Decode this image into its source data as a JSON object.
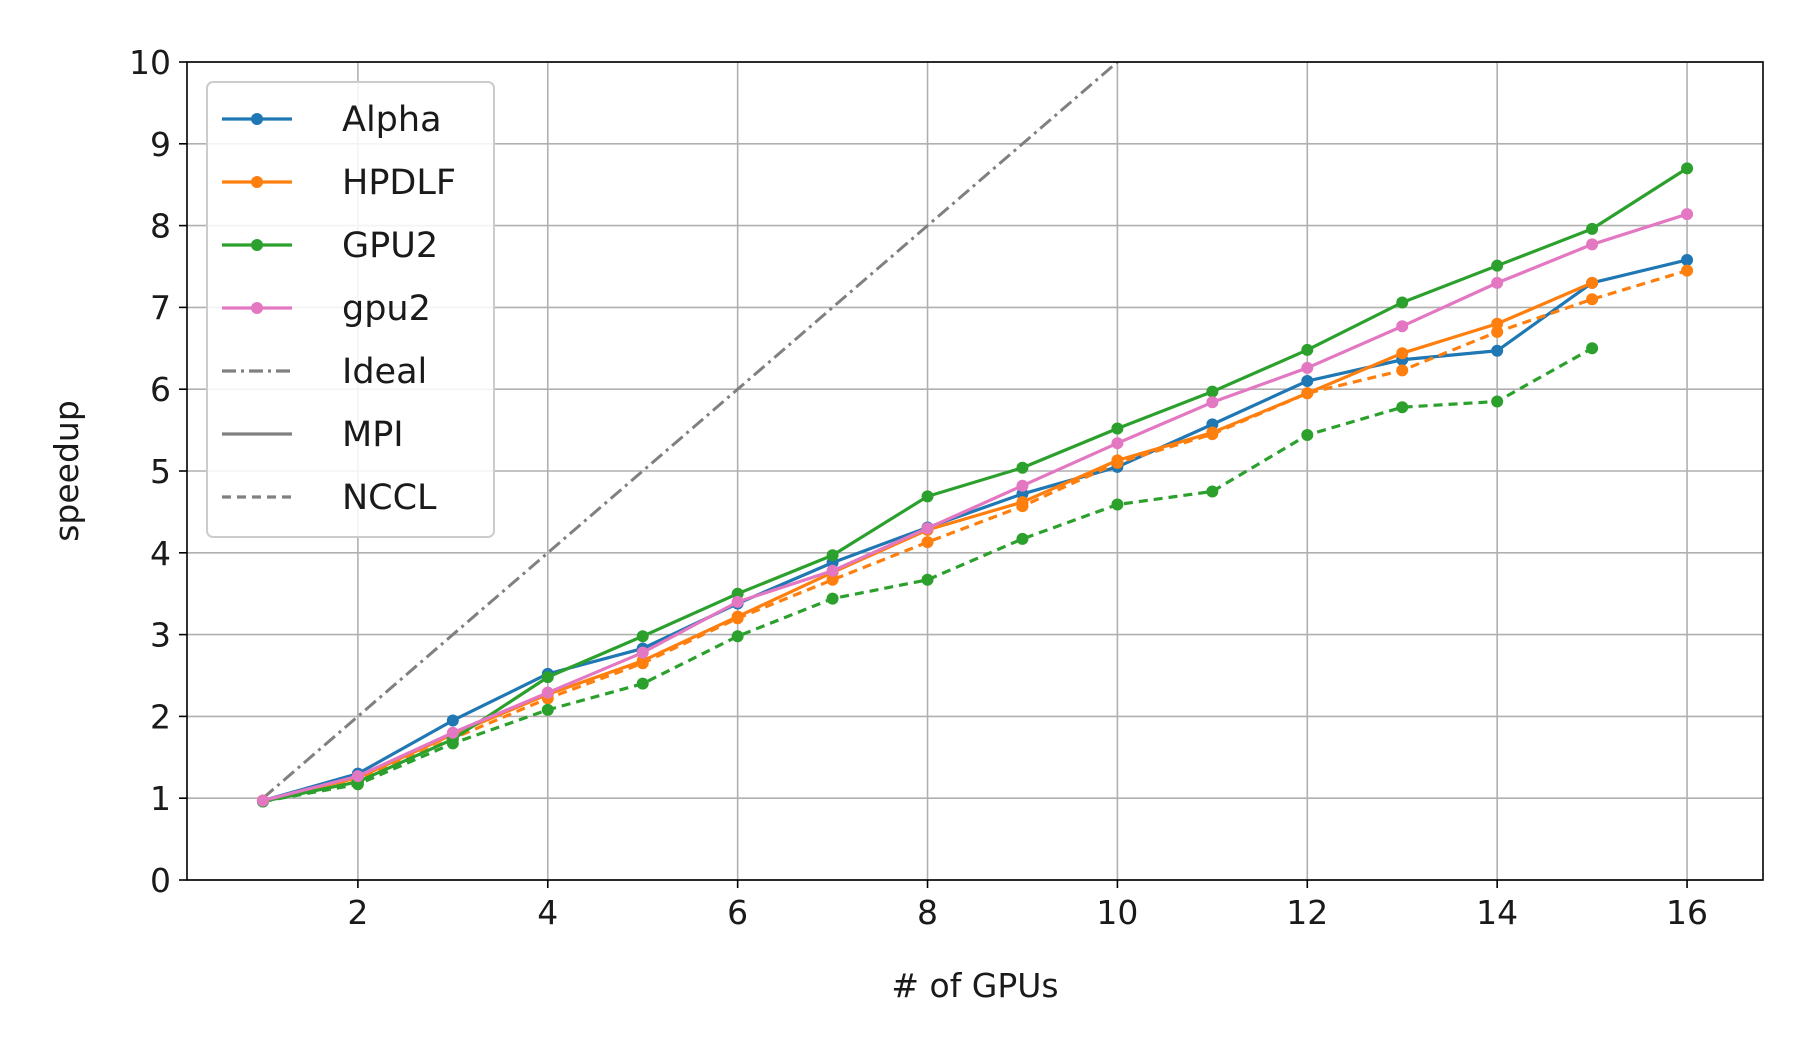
{
  "chart_data": {
    "type": "line",
    "xlabel": "# of GPUs",
    "ylabel": "speedup",
    "xlim": [
      0.2,
      16.8
    ],
    "ylim": [
      0,
      10
    ],
    "xticks": [
      2,
      4,
      6,
      8,
      10,
      12,
      14,
      16
    ],
    "yticks": [
      0,
      1,
      2,
      3,
      4,
      5,
      6,
      7,
      8,
      9,
      10
    ],
    "grid": true,
    "legend_position": "top-left",
    "legend": [
      {
        "label": "Alpha",
        "color": "#1f77b4",
        "style": "solid",
        "marker": true
      },
      {
        "label": "HPDLF",
        "color": "#ff7f0e",
        "style": "solid",
        "marker": true
      },
      {
        "label": "GPU2",
        "color": "#2ca02c",
        "style": "solid",
        "marker": true
      },
      {
        "label": "gpu2",
        "color": "#e377c2",
        "style": "solid",
        "marker": true
      },
      {
        "label": "Ideal",
        "color": "#808080",
        "style": "dashdot",
        "marker": false
      },
      {
        "label": "MPI",
        "color": "#808080",
        "style": "solid",
        "marker": false
      },
      {
        "label": "NCCL",
        "color": "#808080",
        "style": "dashed",
        "marker": false
      }
    ],
    "ideal": {
      "x": [
        1,
        16
      ],
      "y": [
        1,
        16
      ],
      "color": "#808080",
      "style": "dashdot"
    },
    "series": [
      {
        "name": "Alpha",
        "color": "#1f77b4",
        "style": "solid",
        "x": [
          1,
          2,
          3,
          4,
          5,
          6,
          7,
          8,
          9,
          10,
          11,
          12,
          13,
          14,
          15,
          16
        ],
        "y": [
          0.97,
          1.3,
          1.95,
          2.52,
          2.83,
          3.38,
          3.88,
          4.31,
          4.72,
          5.05,
          5.57,
          6.1,
          6.36,
          6.47,
          7.3,
          7.58
        ]
      },
      {
        "name": "HPDLF",
        "color": "#ff7f0e",
        "style": "solid",
        "x": [
          1,
          2,
          3,
          4,
          5,
          6,
          7,
          8,
          9,
          10,
          11,
          12,
          13,
          14,
          15
        ],
        "y": [
          0.97,
          1.25,
          1.78,
          2.27,
          2.68,
          3.22,
          3.76,
          4.28,
          4.62,
          5.13,
          5.47,
          5.95,
          6.44,
          6.8,
          7.3
        ]
      },
      {
        "name": "HPDLF",
        "color": "#ff7f0e",
        "style": "dashed",
        "x": [
          1,
          2,
          3,
          4,
          5,
          6,
          7,
          8,
          9,
          10,
          11,
          12,
          13,
          14,
          15,
          16
        ],
        "y": [
          0.97,
          1.22,
          1.73,
          2.22,
          2.65,
          3.2,
          3.67,
          4.13,
          4.57,
          5.1,
          5.45,
          5.95,
          6.23,
          6.7,
          7.1,
          7.45
        ]
      },
      {
        "name": "GPU2",
        "color": "#2ca02c",
        "style": "solid",
        "x": [
          1,
          2,
          3,
          4,
          5,
          6,
          7,
          8,
          9,
          10,
          11,
          12,
          13,
          14,
          15,
          16
        ],
        "y": [
          0.96,
          1.2,
          1.72,
          2.48,
          2.98,
          3.5,
          3.97,
          4.69,
          5.04,
          5.52,
          5.97,
          6.48,
          7.06,
          7.51,
          7.96,
          8.7
        ]
      },
      {
        "name": "GPU2",
        "color": "#2ca02c",
        "style": "dashed",
        "x": [
          1,
          2,
          3,
          4,
          5,
          6,
          7,
          8,
          9,
          10,
          11,
          12,
          13,
          14,
          15
        ],
        "y": [
          0.96,
          1.17,
          1.67,
          2.08,
          2.4,
          2.98,
          3.44,
          3.67,
          4.17,
          4.59,
          4.75,
          5.44,
          5.78,
          5.85,
          6.5
        ]
      },
      {
        "name": "gpu2",
        "color": "#e377c2",
        "style": "solid",
        "x": [
          1,
          2,
          3,
          4,
          5,
          6,
          7,
          8,
          9,
          10,
          11,
          12,
          13,
          14,
          15,
          16
        ],
        "y": [
          0.97,
          1.27,
          1.8,
          2.29,
          2.78,
          3.4,
          3.78,
          4.3,
          4.82,
          5.34,
          5.84,
          6.26,
          6.77,
          7.3,
          7.77,
          8.14
        ]
      }
    ]
  }
}
